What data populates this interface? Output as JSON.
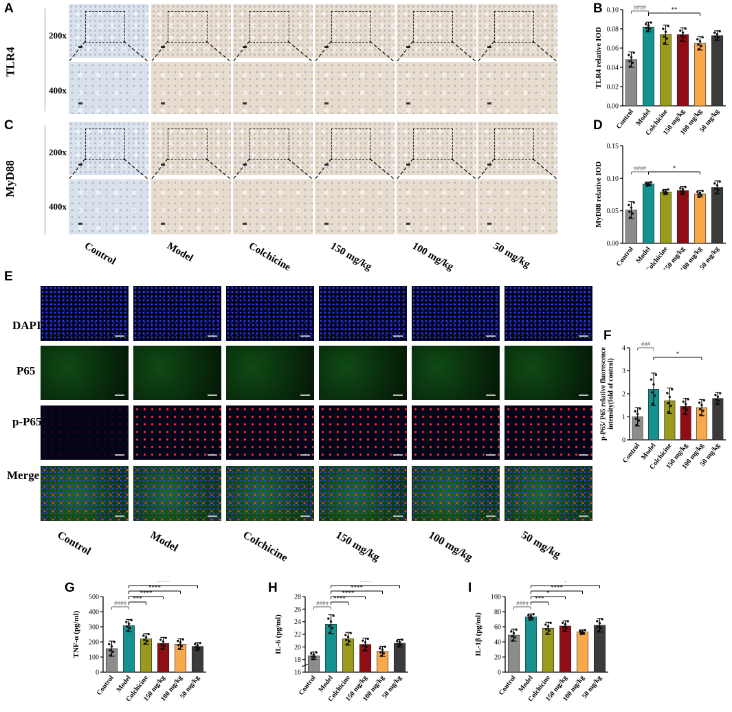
{
  "panel_letters": {
    "A": "A",
    "B": "B",
    "C": "C",
    "D": "D",
    "E": "E",
    "F": "F",
    "G": "G",
    "H": "H",
    "I": "I"
  },
  "ihc_rows": {
    "tlr4": "TLR4",
    "myd88": "MyD88",
    "mag200": "200x",
    "mag400": "400x"
  },
  "if_rows": {
    "dapi": "DAPI",
    "p65": "P65",
    "pp65": "p-P65",
    "merge": "Merge"
  },
  "groups": [
    "Control",
    "Model",
    "Colchicine",
    "150 mg/kg",
    "100 mg/kg",
    "50 mg/kg"
  ],
  "colors": [
    "#8c8c8c",
    "#15918f",
    "#9a9a1c",
    "#8f0e15",
    "#f7a94c",
    "#3b3b3b"
  ],
  "chart_data": [
    {
      "id": "B",
      "type": "bar",
      "ylabel": "TLR4 relative IOD",
      "ylim": [
        0,
        0.1
      ],
      "yticks": [
        "0.00",
        "0.02",
        "0.04",
        "0.06",
        "0.08",
        "0.10"
      ],
      "values": [
        0.048,
        0.082,
        0.074,
        0.074,
        0.065,
        0.073
      ],
      "errors": [
        0.008,
        0.005,
        0.01,
        0.007,
        0.007,
        0.005
      ],
      "brackets": [
        {
          "from": 0,
          "to": 1,
          "label": "####"
        },
        {
          "from": 1,
          "to": 4,
          "label": "**"
        }
      ]
    },
    {
      "id": "D",
      "type": "bar",
      "ylabel": "MyD88 relative IOD",
      "ylim": [
        0,
        0.15
      ],
      "yticks": [
        "0.00",
        "0.05",
        "0.10",
        "0.15"
      ],
      "values": [
        0.051,
        0.091,
        0.079,
        0.081,
        0.076,
        0.086
      ],
      "errors": [
        0.013,
        0.003,
        0.004,
        0.006,
        0.005,
        0.01
      ],
      "brackets": [
        {
          "from": 0,
          "to": 1,
          "label": "####"
        },
        {
          "from": 1,
          "to": 4,
          "label": "*"
        }
      ]
    },
    {
      "id": "F",
      "type": "bar",
      "ylabel": "p-P65/ P65 relative fluorescence intensity(fold of control)",
      "ylim": [
        0,
        4
      ],
      "yticks": [
        "0",
        "1",
        "2",
        "3",
        "4"
      ],
      "values": [
        1.0,
        2.2,
        1.7,
        1.45,
        1.4,
        1.8
      ],
      "errors": [
        0.4,
        0.7,
        0.55,
        0.35,
        0.35,
        0.25
      ],
      "brackets": [
        {
          "from": 0,
          "to": 1,
          "label": "###"
        },
        {
          "from": 1,
          "to": 4,
          "label": "*"
        }
      ]
    },
    {
      "id": "G",
      "type": "bar",
      "ylabel": "TNF-α (pg/ml)",
      "ylim": [
        0,
        500
      ],
      "yticks": [
        "0",
        "100",
        "200",
        "300",
        "400",
        "500"
      ],
      "values": [
        155,
        308,
        220,
        190,
        185,
        170
      ],
      "errors": [
        50,
        40,
        35,
        40,
        35,
        25
      ],
      "brackets": [
        {
          "from": 0,
          "to": 1,
          "label": "####"
        },
        {
          "from": 1,
          "to": 2,
          "label": "***"
        },
        {
          "from": 1,
          "to": 3,
          "label": "****"
        },
        {
          "from": 1,
          "to": 4,
          "label": "****"
        },
        {
          "from": 1,
          "to": 5,
          "label": "****"
        }
      ]
    },
    {
      "id": "H",
      "type": "bar",
      "ylabel": "IL-6 (pg/ml)",
      "ylim": [
        16,
        28
      ],
      "yticks": [
        "16",
        "18",
        "20",
        "22",
        "24",
        "26",
        "28"
      ],
      "values": [
        18.6,
        23.6,
        21.3,
        20.4,
        19.3,
        20.6
      ],
      "errors": [
        0.6,
        1.5,
        1.0,
        1.0,
        0.8,
        0.6
      ],
      "brackets": [
        {
          "from": 0,
          "to": 1,
          "label": "####"
        },
        {
          "from": 1,
          "to": 2,
          "label": "****"
        },
        {
          "from": 1,
          "to": 3,
          "label": "****"
        },
        {
          "from": 1,
          "to": 4,
          "label": "****"
        },
        {
          "from": 1,
          "to": 5,
          "label": "****"
        }
      ]
    },
    {
      "id": "I",
      "type": "bar",
      "ylabel": "IL-1β (pg/ml)",
      "ylim": [
        0,
        100
      ],
      "yticks": [
        "0",
        "20",
        "40",
        "60",
        "80",
        "100"
      ],
      "values": [
        49,
        73,
        58,
        61,
        53,
        62
      ],
      "errors": [
        8,
        4,
        8,
        7,
        3,
        9
      ],
      "brackets": [
        {
          "from": 0,
          "to": 1,
          "label": "####"
        },
        {
          "from": 1,
          "to": 2,
          "label": "***"
        },
        {
          "from": 1,
          "to": 3,
          "label": "*"
        },
        {
          "from": 1,
          "to": 4,
          "label": "****"
        },
        {
          "from": 1,
          "to": 5,
          "label": "*"
        }
      ]
    }
  ]
}
